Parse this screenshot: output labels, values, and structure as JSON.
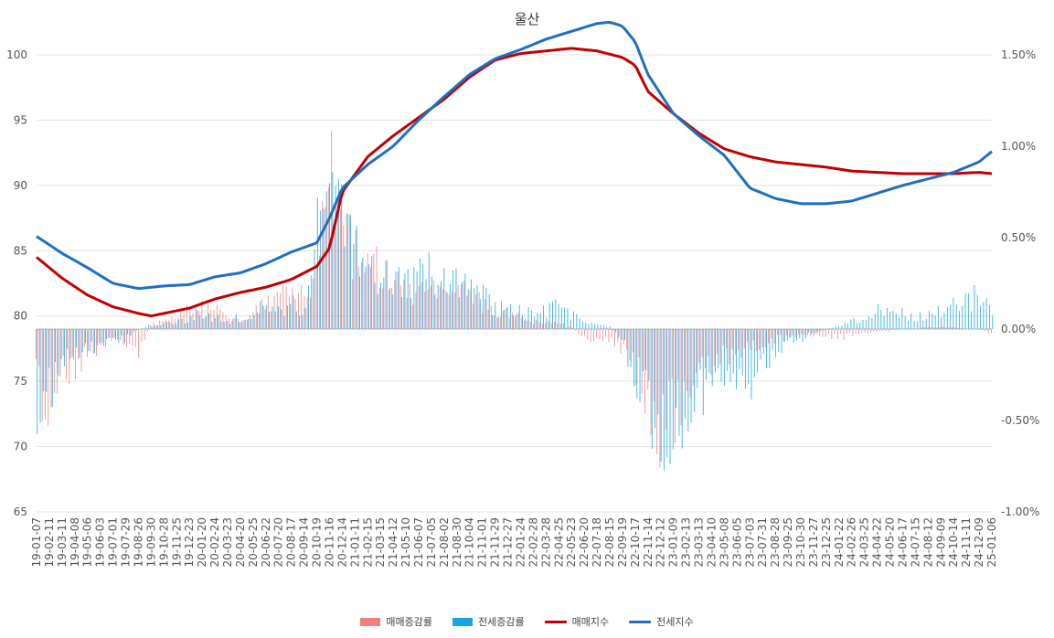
{
  "chart_data": {
    "type": "bar+line",
    "title": "울산",
    "dates": [
      "19-01-07",
      "19-02-11",
      "19-03-11",
      "19-04-08",
      "19-05-06",
      "19-06-03",
      "19-07-01",
      "19-07-29",
      "19-08-26",
      "19-09-30",
      "19-10-28",
      "19-11-25",
      "19-12-23",
      "20-01-20",
      "20-02-24",
      "20-03-23",
      "20-04-20",
      "20-05-25",
      "20-06-22",
      "20-07-20",
      "20-08-17",
      "20-09-14",
      "20-10-19",
      "20-11-16",
      "20-12-14",
      "21-01-11",
      "21-02-15",
      "21-03-15",
      "21-04-12",
      "21-05-10",
      "21-06-07",
      "21-07-05",
      "21-08-02",
      "21-08-30",
      "21-10-04",
      "21-11-01",
      "21-11-29",
      "21-12-27",
      "22-01-24",
      "22-02-28",
      "22-03-28",
      "22-04-25",
      "22-05-23",
      "22-06-20",
      "22-07-18",
      "22-08-15",
      "22-09-19",
      "22-10-17",
      "22-11-14",
      "22-12-12",
      "23-01-09",
      "23-02-13",
      "23-03-13",
      "23-04-10",
      "23-05-08",
      "23-06-05",
      "23-07-03",
      "23-07-31",
      "23-08-28",
      "23-09-25",
      "23-10-30",
      "23-11-27",
      "23-12-25",
      "24-01-22",
      "24-02-26",
      "24-03-25",
      "24-04-22",
      "24-05-20",
      "24-06-17",
      "24-07-15",
      "24-08-12",
      "24-09-09",
      "24-10-14",
      "24-11-11",
      "24-12-09",
      "25-01-06"
    ],
    "y_left": {
      "min": 65,
      "max": 100,
      "ticks": [
        65,
        70,
        75,
        80,
        85,
        90,
        95,
        100
      ]
    },
    "y_right": {
      "min": -1.0,
      "max": 1.5,
      "ticks": [
        "-1.00%",
        "-0.50%",
        "0.00%",
        "0.50%",
        "1.00%",
        "1.50%"
      ]
    },
    "legend_position": "bottom",
    "grid": true,
    "series": [
      {
        "name": "매매증감률",
        "type": "bar",
        "axis": "right",
        "color": "#f08080",
        "anchors": [
          [
            0,
            -0.3
          ],
          [
            1,
            -0.4
          ],
          [
            2,
            -0.25
          ],
          [
            3,
            -0.2
          ],
          [
            4,
            -0.15
          ],
          [
            5,
            -0.1
          ],
          [
            6,
            -0.05
          ],
          [
            7,
            -0.08
          ],
          [
            8,
            -0.12
          ],
          [
            9,
            0.02
          ],
          [
            10,
            0.05
          ],
          [
            11,
            0.08
          ],
          [
            12,
            0.1
          ],
          [
            13,
            0.12
          ],
          [
            14,
            0.1
          ],
          [
            15,
            0.08
          ],
          [
            16,
            0.05
          ],
          [
            17,
            0.1
          ],
          [
            18,
            0.15
          ],
          [
            19,
            0.2
          ],
          [
            20,
            0.15
          ],
          [
            21,
            0.2
          ],
          [
            22,
            0.3
          ],
          [
            23,
            1.2
          ],
          [
            24,
            0.5
          ],
          [
            25,
            0.4
          ],
          [
            26,
            0.35
          ],
          [
            27,
            0.3
          ],
          [
            28,
            0.25
          ],
          [
            29,
            0.2
          ],
          [
            30,
            0.18
          ],
          [
            31,
            0.2
          ],
          [
            32,
            0.15
          ],
          [
            33,
            0.2
          ],
          [
            34,
            0.18
          ],
          [
            35,
            0.15
          ],
          [
            36,
            0.1
          ],
          [
            37,
            0.08
          ],
          [
            38,
            0.06
          ],
          [
            39,
            0.05
          ],
          [
            40,
            0.04
          ],
          [
            41,
            0.03
          ],
          [
            42,
            0.01
          ],
          [
            43,
            -0.05
          ],
          [
            44,
            -0.05
          ],
          [
            45,
            -0.05
          ],
          [
            46,
            -0.1
          ],
          [
            47,
            -0.2
          ],
          [
            48,
            -0.4
          ],
          [
            49,
            -0.55
          ],
          [
            50,
            -0.45
          ],
          [
            51,
            -0.35
          ],
          [
            52,
            -0.25
          ],
          [
            53,
            -0.2
          ],
          [
            54,
            -0.15
          ],
          [
            55,
            -0.12
          ],
          [
            56,
            -0.1
          ],
          [
            57,
            -0.08
          ],
          [
            58,
            -0.06
          ],
          [
            59,
            -0.05
          ],
          [
            60,
            -0.04
          ],
          [
            61,
            -0.03
          ],
          [
            62,
            -0.04
          ],
          [
            63,
            -0.05
          ],
          [
            64,
            -0.03
          ],
          [
            65,
            -0.02
          ],
          [
            66,
            -0.01
          ],
          [
            67,
            -0.01
          ],
          [
            68,
            0.0
          ],
          [
            69,
            0.0
          ],
          [
            70,
            0.01
          ],
          [
            71,
            0.01
          ],
          [
            72,
            0.01
          ],
          [
            73,
            0.0
          ],
          [
            74,
            0.0
          ],
          [
            75,
            -0.02
          ]
        ]
      },
      {
        "name": "전세증감률",
        "type": "bar",
        "axis": "right",
        "color": "#1aa3e8",
        "anchors": [
          [
            0,
            -0.4
          ],
          [
            1,
            -0.35
          ],
          [
            2,
            -0.2
          ],
          [
            3,
            -0.15
          ],
          [
            4,
            -0.12
          ],
          [
            5,
            -0.1
          ],
          [
            6,
            -0.08
          ],
          [
            7,
            -0.05
          ],
          [
            8,
            0.0
          ],
          [
            9,
            0.02
          ],
          [
            10,
            0.03
          ],
          [
            11,
            0.04
          ],
          [
            12,
            0.05
          ],
          [
            13,
            0.1
          ],
          [
            14,
            0.06
          ],
          [
            15,
            0.05
          ],
          [
            16,
            0.06
          ],
          [
            17,
            0.1
          ],
          [
            18,
            0.12
          ],
          [
            19,
            0.1
          ],
          [
            20,
            0.15
          ],
          [
            21,
            0.1
          ],
          [
            22,
            0.5
          ],
          [
            23,
            0.9
          ],
          [
            24,
            0.6
          ],
          [
            25,
            0.4
          ],
          [
            26,
            0.3
          ],
          [
            27,
            0.25
          ],
          [
            28,
            0.3
          ],
          [
            29,
            0.25
          ],
          [
            30,
            0.28
          ],
          [
            31,
            0.3
          ],
          [
            32,
            0.25
          ],
          [
            33,
            0.25
          ],
          [
            34,
            0.2
          ],
          [
            35,
            0.18
          ],
          [
            36,
            0.12
          ],
          [
            37,
            0.1
          ],
          [
            38,
            0.1
          ],
          [
            39,
            0.08
          ],
          [
            40,
            0.1
          ],
          [
            41,
            0.12
          ],
          [
            42,
            0.08
          ],
          [
            43,
            0.03
          ],
          [
            44,
            0.02
          ],
          [
            45,
            0.01
          ],
          [
            46,
            -0.08
          ],
          [
            47,
            -0.25
          ],
          [
            48,
            -0.45
          ],
          [
            49,
            -0.55
          ],
          [
            50,
            -0.6
          ],
          [
            51,
            -0.45
          ],
          [
            52,
            -0.35
          ],
          [
            53,
            -0.3
          ],
          [
            54,
            -0.28
          ],
          [
            55,
            -0.25
          ],
          [
            56,
            -0.3
          ],
          [
            57,
            -0.2
          ],
          [
            58,
            -0.12
          ],
          [
            59,
            -0.08
          ],
          [
            60,
            -0.05
          ],
          [
            61,
            -0.02
          ],
          [
            62,
            0.0
          ],
          [
            63,
            0.02
          ],
          [
            64,
            0.05
          ],
          [
            65,
            0.06
          ],
          [
            66,
            0.1
          ],
          [
            67,
            0.12
          ],
          [
            68,
            0.08
          ],
          [
            69,
            0.06
          ],
          [
            70,
            0.08
          ],
          [
            71,
            0.1
          ],
          [
            72,
            0.12
          ],
          [
            73,
            0.15
          ],
          [
            74,
            0.18
          ],
          [
            75,
            0.1
          ]
        ]
      },
      {
        "name": "매매지수",
        "type": "line",
        "axis": "left",
        "color": "#c00000",
        "anchors": [
          [
            0,
            84.5
          ],
          [
            2,
            82.9
          ],
          [
            4,
            81.6
          ],
          [
            6,
            80.7
          ],
          [
            8,
            80.2
          ],
          [
            9,
            80.0
          ],
          [
            10,
            80.2
          ],
          [
            12,
            80.6
          ],
          [
            14,
            81.3
          ],
          [
            16,
            81.8
          ],
          [
            18,
            82.2
          ],
          [
            20,
            82.8
          ],
          [
            22,
            83.8
          ],
          [
            23,
            85.2
          ],
          [
            24,
            89.5
          ],
          [
            26,
            92.2
          ],
          [
            28,
            93.8
          ],
          [
            30,
            95.2
          ],
          [
            32,
            96.6
          ],
          [
            34,
            98.3
          ],
          [
            36,
            99.6
          ],
          [
            38,
            100.1
          ],
          [
            40,
            100.3
          ],
          [
            42,
            100.5
          ],
          [
            44,
            100.3
          ],
          [
            46,
            99.8
          ],
          [
            47,
            99.2
          ],
          [
            48,
            97.2
          ],
          [
            50,
            95.5
          ],
          [
            52,
            94.0
          ],
          [
            54,
            92.8
          ],
          [
            56,
            92.2
          ],
          [
            58,
            91.8
          ],
          [
            60,
            91.6
          ],
          [
            62,
            91.4
          ],
          [
            64,
            91.1
          ],
          [
            66,
            91.0
          ],
          [
            68,
            90.9
          ],
          [
            70,
            90.9
          ],
          [
            72,
            90.9
          ],
          [
            74,
            91.0
          ],
          [
            75,
            90.9
          ]
        ]
      },
      {
        "name": "전세지수",
        "type": "line",
        "axis": "left",
        "color": "#1f6fc0",
        "anchors": [
          [
            0,
            86.1
          ],
          [
            2,
            84.8
          ],
          [
            4,
            83.7
          ],
          [
            6,
            82.5
          ],
          [
            8,
            82.1
          ],
          [
            10,
            82.3
          ],
          [
            12,
            82.4
          ],
          [
            14,
            83.0
          ],
          [
            16,
            83.3
          ],
          [
            18,
            84.0
          ],
          [
            20,
            84.9
          ],
          [
            22,
            85.6
          ],
          [
            23,
            87.5
          ],
          [
            24,
            89.8
          ],
          [
            26,
            91.6
          ],
          [
            28,
            93.0
          ],
          [
            30,
            95.0
          ],
          [
            32,
            96.8
          ],
          [
            34,
            98.5
          ],
          [
            36,
            99.7
          ],
          [
            38,
            100.4
          ],
          [
            40,
            101.2
          ],
          [
            42,
            101.8
          ],
          [
            44,
            102.4
          ],
          [
            45,
            102.5
          ],
          [
            46,
            102.2
          ],
          [
            47,
            101.0
          ],
          [
            48,
            98.5
          ],
          [
            50,
            95.5
          ],
          [
            52,
            93.8
          ],
          [
            54,
            92.3
          ],
          [
            56,
            89.8
          ],
          [
            58,
            89.0
          ],
          [
            60,
            88.6
          ],
          [
            62,
            88.6
          ],
          [
            64,
            88.8
          ],
          [
            66,
            89.4
          ],
          [
            68,
            90.0
          ],
          [
            70,
            90.5
          ],
          [
            72,
            91.0
          ],
          [
            74,
            91.8
          ],
          [
            75,
            92.6
          ]
        ]
      }
    ]
  },
  "legend": [
    {
      "label": "매매증감률",
      "kind": "bar",
      "color": "#f08080"
    },
    {
      "label": "전세증감률",
      "kind": "bar",
      "color": "#1aa3e8"
    },
    {
      "label": "매매지수",
      "kind": "line",
      "color": "#c00000"
    },
    {
      "label": "전세지수",
      "kind": "line",
      "color": "#1f6fc0"
    }
  ]
}
